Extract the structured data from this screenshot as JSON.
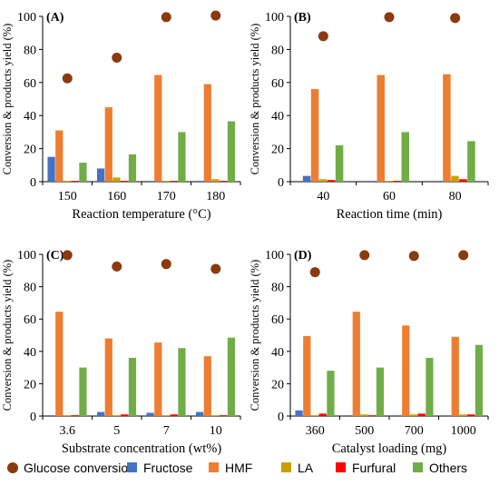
{
  "colors": {
    "glucose": "#8B3A0E",
    "fructose": "#4472C4",
    "hmf": "#ED7D31",
    "la": "#C9A000",
    "furfural": "#FF0000",
    "others": "#70AD47"
  },
  "legend": [
    {
      "name": "Glucose conversion",
      "marker": "circle",
      "color_key": "glucose"
    },
    {
      "name": "Fructose",
      "marker": "square",
      "color_key": "fructose"
    },
    {
      "name": "HMF",
      "marker": "square",
      "color_key": "hmf"
    },
    {
      "name": "LA",
      "marker": "square",
      "color_key": "la"
    },
    {
      "name": "Furfural",
      "marker": "square",
      "color_key": "furfural"
    },
    {
      "name": "Others",
      "marker": "square",
      "color_key": "others"
    }
  ],
  "chart_data": [
    {
      "type": "bar",
      "panel": "(A)",
      "xlabel": "Reaction temperature (°C)",
      "ylabel": "Conversion & products yield (%)",
      "ylim": [
        0,
        100
      ],
      "yticks": [
        0,
        20,
        40,
        60,
        80,
        100
      ],
      "categories": [
        "150",
        "160",
        "170",
        "180"
      ],
      "series": [
        {
          "name": "Fructose",
          "values": [
            15,
            8,
            0.5,
            0.5
          ]
        },
        {
          "name": "HMF",
          "values": [
            31,
            45,
            64.5,
            59
          ]
        },
        {
          "name": "LA",
          "values": [
            0.5,
            2.5,
            0.5,
            1.5
          ]
        },
        {
          "name": "Furfural",
          "values": [
            0.5,
            0.5,
            0.5,
            0.5
          ]
        },
        {
          "name": "Others",
          "values": [
            11.5,
            16.5,
            30,
            36.5
          ]
        }
      ],
      "scatter": {
        "name": "Glucose conversion",
        "values": [
          62.5,
          75,
          99.5,
          100.5
        ]
      }
    },
    {
      "type": "bar",
      "panel": "(B)",
      "xlabel": "Reaction time (min)",
      "ylabel": "Conversion & products yield (%)",
      "ylim": [
        0,
        100
      ],
      "yticks": [
        0,
        20,
        40,
        60,
        80,
        100
      ],
      "categories": [
        "40",
        "60",
        "80"
      ],
      "series": [
        {
          "name": "Fructose",
          "values": [
            3.5,
            0.5,
            0.5
          ]
        },
        {
          "name": "HMF",
          "values": [
            56,
            64.5,
            65
          ]
        },
        {
          "name": "LA",
          "values": [
            1.5,
            0.5,
            3.5
          ]
        },
        {
          "name": "Furfural",
          "values": [
            1,
            0.5,
            1.5
          ]
        },
        {
          "name": "Others",
          "values": [
            22,
            30,
            24.5
          ]
        }
      ],
      "scatter": {
        "name": "Glucose conversion",
        "values": [
          88,
          99.5,
          99
        ]
      }
    },
    {
      "type": "bar",
      "panel": "(C)",
      "xlabel": "Substrate concentration (wt%)",
      "ylabel": "Conversion & products yield (%)",
      "ylim": [
        0,
        100
      ],
      "yticks": [
        0,
        20,
        40,
        60,
        80,
        100
      ],
      "categories": [
        "3.6",
        "5",
        "7",
        "10"
      ],
      "series": [
        {
          "name": "Fructose",
          "values": [
            0.5,
            2.5,
            2,
            2.5
          ]
        },
        {
          "name": "HMF",
          "values": [
            64.5,
            48,
            45.5,
            37
          ]
        },
        {
          "name": "LA",
          "values": [
            0.5,
            0.5,
            0.5,
            0.5
          ]
        },
        {
          "name": "Furfural",
          "values": [
            0.5,
            1,
            1,
            0.5
          ]
        },
        {
          "name": "Others",
          "values": [
            30,
            36,
            42,
            48.5
          ]
        }
      ],
      "scatter": {
        "name": "Glucose conversion",
        "values": [
          99.5,
          92.5,
          94,
          91
        ]
      }
    },
    {
      "type": "bar",
      "panel": "(D)",
      "xlabel": "Catalyst loading (mg)",
      "ylabel": "Conversion & products yield (%)",
      "ylim": [
        0,
        100
      ],
      "yticks": [
        0,
        20,
        40,
        60,
        80,
        100
      ],
      "categories": [
        "360",
        "500",
        "700",
        "1000"
      ],
      "series": [
        {
          "name": "Fructose",
          "values": [
            3.5,
            0.5,
            0.5,
            0.5
          ]
        },
        {
          "name": "HMF",
          "values": [
            49.5,
            64.5,
            56,
            49
          ]
        },
        {
          "name": "LA",
          "values": [
            0.5,
            1,
            1,
            1
          ]
        },
        {
          "name": "Furfural",
          "values": [
            1.5,
            0.5,
            1.5,
            1
          ]
        },
        {
          "name": "Others",
          "values": [
            28,
            30,
            36,
            44
          ]
        }
      ],
      "scatter": {
        "name": "Glucose conversion",
        "values": [
          89,
          99.5,
          99,
          99.5
        ]
      }
    }
  ]
}
